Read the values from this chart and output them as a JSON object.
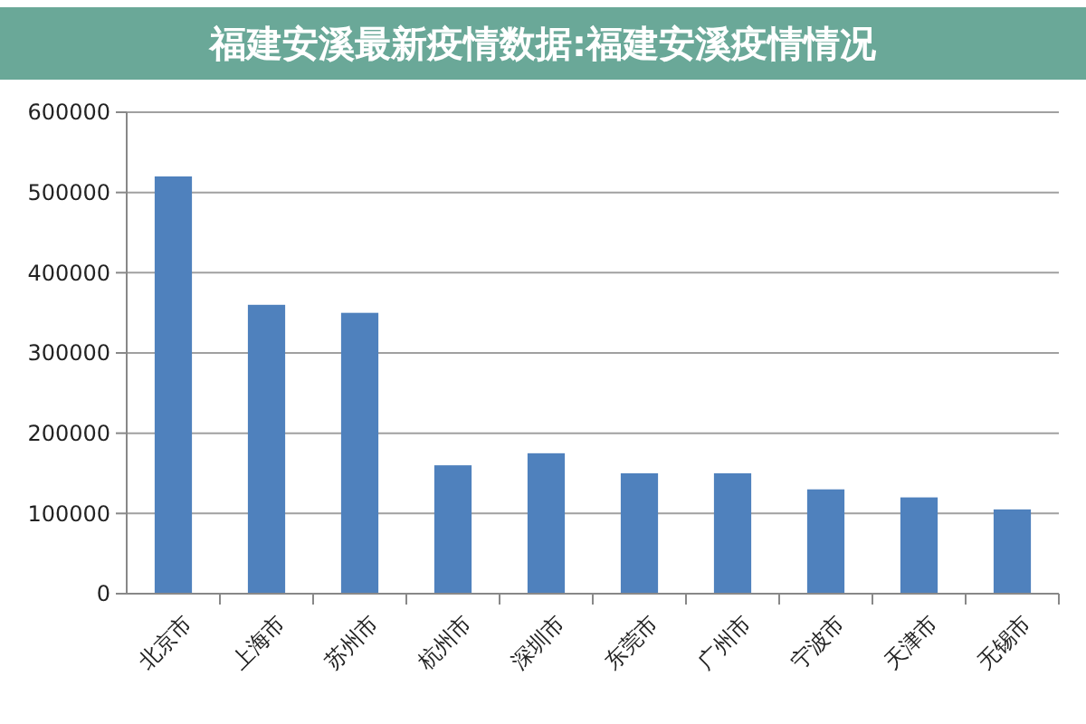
{
  "chart_data": {
    "type": "bar",
    "title": "福建安溪最新疫情数据:福建安溪疫情情况",
    "categories": [
      "北京市",
      "上海市",
      "苏州市",
      "杭州市",
      "深圳市",
      "东莞市",
      "广州市",
      "宁波市",
      "天津市",
      "无锡市"
    ],
    "values": [
      520000,
      360000,
      350000,
      160000,
      175000,
      150000,
      150000,
      130000,
      120000,
      105000
    ],
    "color": "#4f81bd",
    "ylim": [
      0,
      600000
    ],
    "yticks": [
      0,
      100000,
      200000,
      300000,
      400000,
      500000,
      600000
    ],
    "grid": "y"
  }
}
